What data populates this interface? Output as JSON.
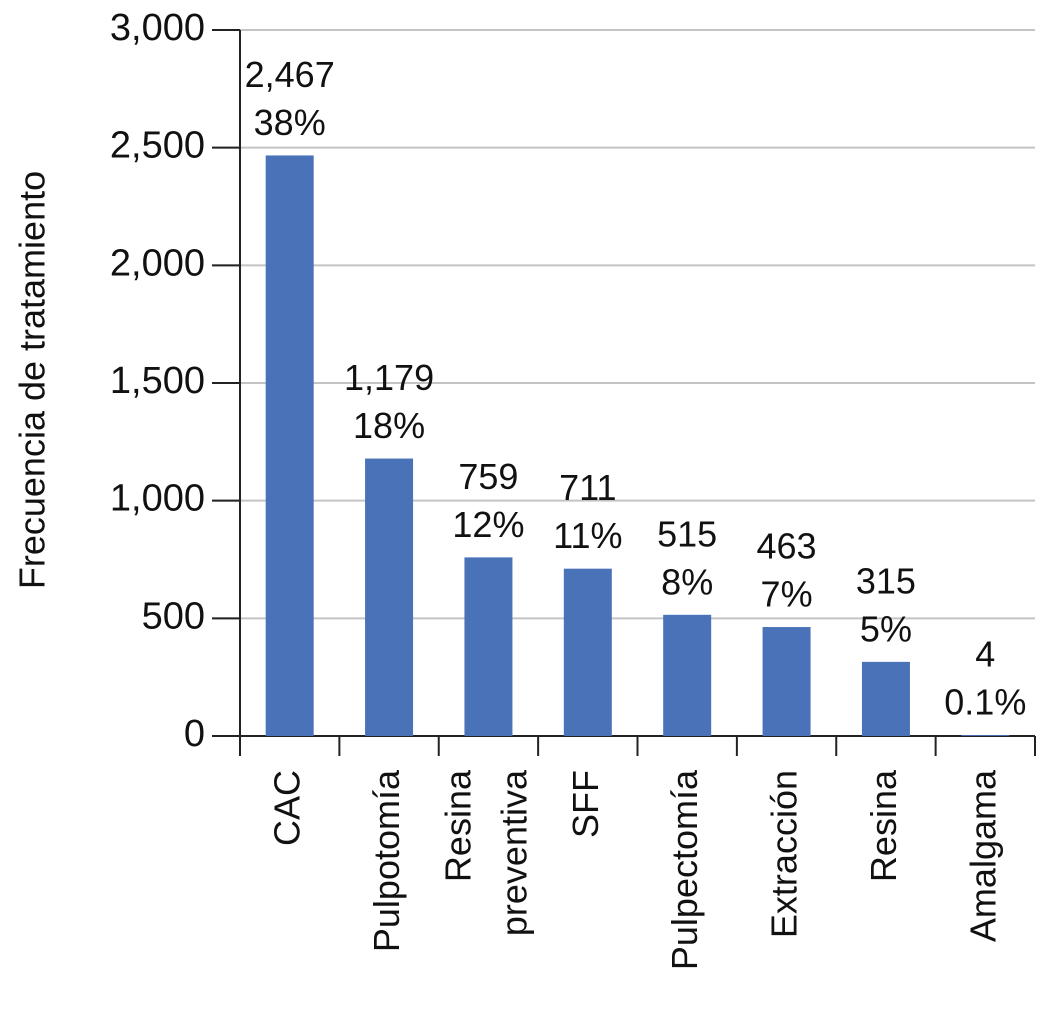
{
  "chart_data": {
    "type": "bar",
    "y_label": "Frecuencia de tratamiento",
    "categories": [
      "CAC",
      "Pulpotomía",
      "Resina\npreventiva",
      "SFF",
      "Pulpectomía",
      "Extracción",
      "Resina",
      "Amalgama"
    ],
    "values": [
      2467,
      1179,
      759,
      711,
      515,
      463,
      315,
      4
    ],
    "value_labels": [
      "2,467",
      "1,179",
      "759",
      "711",
      "515",
      "463",
      "315",
      "4"
    ],
    "share_labels": [
      "38%",
      "18%",
      "12%",
      "11%",
      "8%",
      "7%",
      "5%",
      "0.1%"
    ],
    "color": "#4a72b8",
    "ylim": [
      0,
      3000
    ],
    "yticks": [
      0,
      500,
      {
        "value": 1000,
        "label": "1,000"
      },
      {
        "value": 1500,
        "label": "1,500"
      },
      {
        "value": 2000,
        "label": "2,000"
      },
      {
        "value": 2500,
        "label": "2,500"
      },
      {
        "value": 3000,
        "label": "3,000"
      }
    ],
    "grid": true
  }
}
